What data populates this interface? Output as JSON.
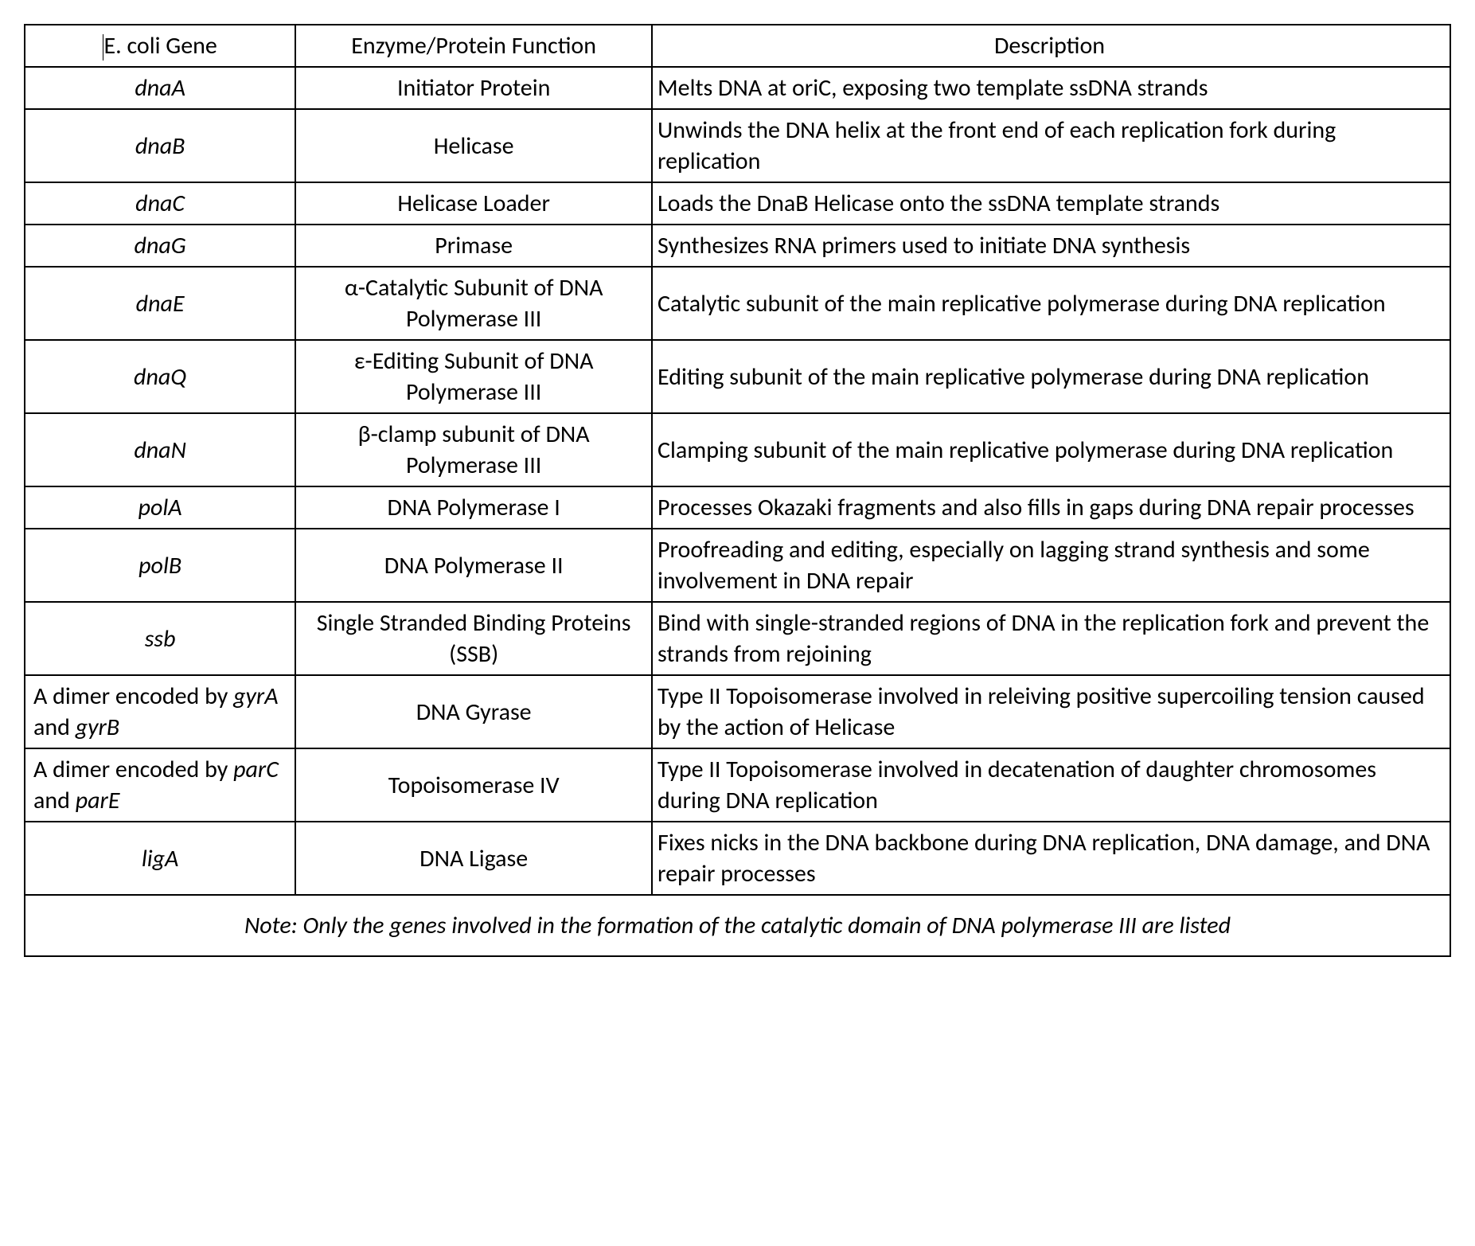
{
  "table": {
    "border_color": "#000000",
    "background_color": "#ffffff",
    "text_color": "#000000",
    "font_family": "Calibri",
    "font_size_pt": 22,
    "columns": [
      {
        "key": "gene",
        "label": "E. coli Gene",
        "width_pct": 19,
        "align": "center"
      },
      {
        "key": "func",
        "label": "Enzyme/Protein Function",
        "width_pct": 25,
        "align": "center"
      },
      {
        "key": "desc",
        "label": "Description",
        "width_pct": 56,
        "align": "left"
      }
    ],
    "header": {
      "gene": "E. coli Gene",
      "func": "Enzyme/Protein Function",
      "desc": "Description"
    },
    "rows": [
      {
        "gene_html": "dnaA",
        "gene_style": "italic",
        "func": "Initiator Protein",
        "desc": "Melts DNA at oriC, exposing two template ssDNA strands"
      },
      {
        "gene_html": "dnaB",
        "gene_style": "italic",
        "func": "Helicase",
        "desc": "Unwinds the DNA helix at the front end of each replication fork during replication"
      },
      {
        "gene_html": "dnaC",
        "gene_style": "italic",
        "func": "Helicase Loader",
        "desc": "Loads the DnaB Helicase onto the ssDNA template strands"
      },
      {
        "gene_html": "dnaG",
        "gene_style": "italic",
        "func": "Primase",
        "desc": "Synthesizes RNA primers used to initiate DNA synthesis"
      },
      {
        "gene_html": "dnaE",
        "gene_style": "italic",
        "func": "α-Catalytic Subunit of DNA Polymerase III",
        "desc": "Catalytic subunit of the main replicative polymerase during DNA replication"
      },
      {
        "gene_html": "dnaQ",
        "gene_style": "italic",
        "func": "ε-Editing Subunit of DNA Polymerase III",
        "desc": "Editing subunit of the main replicative polymerase during DNA replication"
      },
      {
        "gene_html": "dnaN",
        "gene_style": "italic",
        "func": "β-clamp subunit of DNA Polymerase III",
        "desc": "Clamping subunit of the main replicative polymerase during DNA replication"
      },
      {
        "gene_html": "polA",
        "gene_style": "italic",
        "func": "DNA Polymerase I",
        "desc": "Processes Okazaki fragments and also fills in gaps during DNA repair processes"
      },
      {
        "gene_html": "polB",
        "gene_style": "italic",
        "func": "DNA Polymerase II",
        "desc": "Proofreading and editing, especially on lagging strand synthesis and some involvement in DNA repair"
      },
      {
        "gene_html": "ssb",
        "gene_style": "italic",
        "func": "Single Stranded Binding Proteins (SSB)",
        "desc": "Bind with single-stranded regions of DNA in the replication fork and prevent the strands from rejoining"
      },
      {
        "gene_dimer": {
          "prefix": "A dimer encoded by ",
          "g1": "gyrA",
          "mid": "  and ",
          "g2": "gyrB"
        },
        "gene_style": "dimer",
        "func": "DNA Gyrase",
        "desc": "Type II Topoisomerase involved in releiving positive supercoiling tension caused by the action of Helicase"
      },
      {
        "gene_dimer": {
          "prefix": "A dimer encoded by ",
          "g1": "parC",
          "mid": "  and ",
          "g2": "parE"
        },
        "gene_style": "dimer",
        "func": "Topoisomerase IV",
        "desc": "Type II Topoisomerase involved in decatenation of daughter chromosomes during DNA replication"
      },
      {
        "gene_html": "ligA",
        "gene_style": "italic",
        "func": "DNA Ligase",
        "desc": "Fixes nicks in the DNA backbone during DNA replication, DNA damage, and DNA repair processes"
      }
    ],
    "note": "Note: Only the genes involved in the formation of the catalytic domain of DNA polymerase III are listed"
  }
}
